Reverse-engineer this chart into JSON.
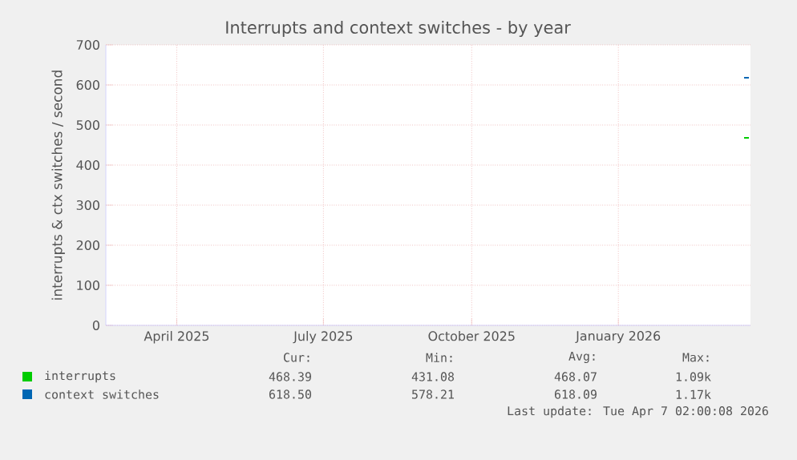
{
  "chart_data": {
    "type": "line",
    "title": "Interrupts and context switches - by year",
    "ylabel": "interrupts & ctx switches / second",
    "x": [
      "2026-04-03",
      "2026-04-06"
    ],
    "series": [
      {
        "name": "interrupts",
        "color": "#00cc00",
        "values": [
          468,
          468
        ]
      },
      {
        "name": "context switches",
        "color": "#0066b3",
        "values": [
          618,
          618
        ]
      }
    ],
    "xlim": [
      "2025-03-03",
      "2026-04-07"
    ],
    "xticks": [
      {
        "value": "2025-04-16",
        "label": "April 2025"
      },
      {
        "value": "2025-07-16",
        "label": "July 2025"
      },
      {
        "value": "2025-10-16",
        "label": "October 2025"
      },
      {
        "value": "2026-01-15",
        "label": "January 2026"
      }
    ],
    "ylim": [
      0,
      700
    ],
    "yticks": [
      0,
      100,
      200,
      300,
      400,
      500,
      600,
      700
    ],
    "grid": true,
    "legend": "bottom",
    "annotations": [
      "Cur:",
      "Min:",
      "Avg:",
      "Max:",
      "468.39",
      "431.08",
      "468.07",
      "1.09k",
      "618.50",
      "578.21",
      "618.09",
      "1.17k",
      "Last update: Tue Apr  7 02:00:08 2026"
    ]
  }
}
